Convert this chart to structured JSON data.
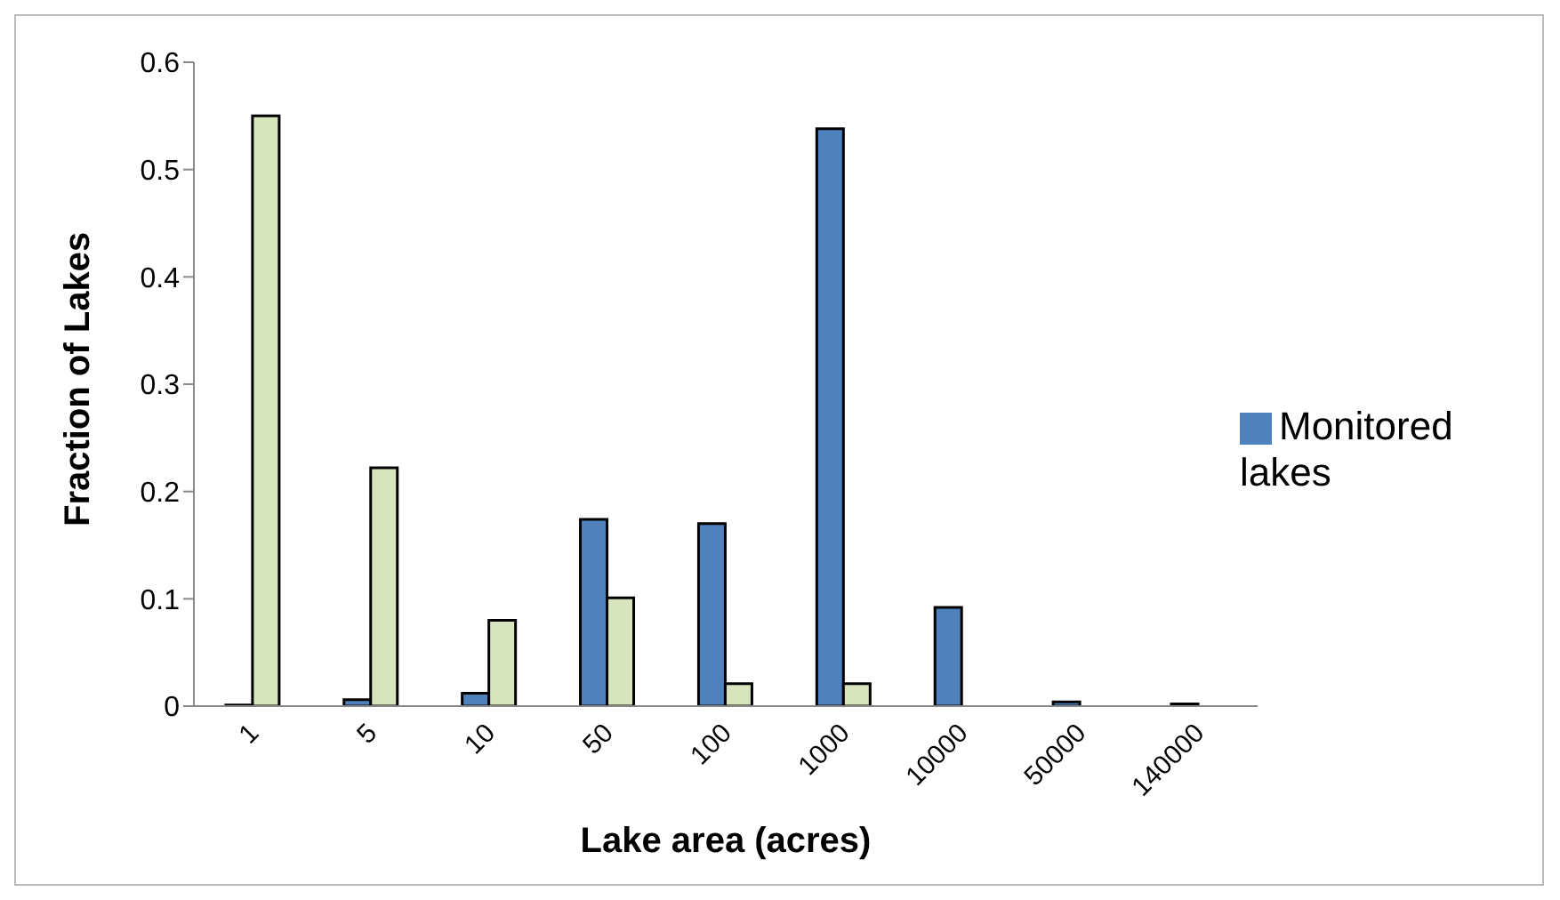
{
  "chart_data": {
    "type": "bar",
    "xlabel": "Lake area (acres)",
    "ylabel": "Fraction of Lakes",
    "categories": [
      "1",
      "5",
      "10",
      "50",
      "100",
      "1000",
      "10000",
      "50000",
      "140000"
    ],
    "series": [
      {
        "name": "Monitored lakes",
        "color": "#4f81bd",
        "values": [
          0.001,
          0.006,
          0.012,
          0.174,
          0.17,
          0.538,
          0.092,
          0.004,
          0.002
        ]
      },
      {
        "color": "#d7e4bd",
        "values": [
          0.55,
          0.222,
          0.08,
          0.101,
          0.021,
          0.021,
          null,
          null,
          null
        ]
      }
    ],
    "ylim": [
      0,
      0.6
    ],
    "yticks": [
      0,
      0.1,
      0.2,
      0.3,
      0.4,
      0.5,
      0.6
    ],
    "grid": false,
    "legend": "right"
  }
}
